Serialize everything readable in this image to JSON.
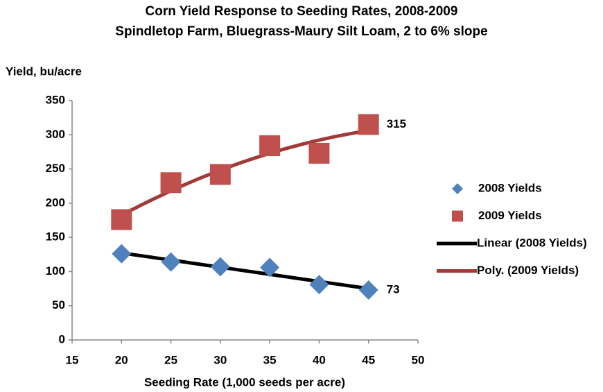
{
  "chart_data": {
    "type": "scatter",
    "title": "Corn Yield Response to Seeding Rates, 2008-2009",
    "subtitle": "Spindletop Farm, Bluegrass-Maury Silt Loam, 2 to 6% slope",
    "x_label": "Seeding Rate (1,000 seeds per acre)",
    "y_label": "Yield, bu/acre",
    "xlim": [
      15,
      50
    ],
    "xticks": [
      15,
      20,
      25,
      30,
      35,
      40,
      45,
      50
    ],
    "ylim": [
      0,
      350
    ],
    "yticks": [
      0,
      50,
      100,
      150,
      200,
      250,
      300,
      350
    ],
    "grid": false,
    "legend": "right",
    "x": [
      20,
      25,
      30,
      35,
      40,
      45
    ],
    "series": [
      {
        "name": "2008 Yields",
        "color": "#4f81bd",
        "marker": "diamond",
        "values": [
          126,
          114,
          107,
          106,
          81,
          73
        ],
        "label_last": true
      },
      {
        "name": "2009 Yields",
        "color": "#c0504d",
        "marker": "square",
        "values": [
          176,
          230,
          242,
          284,
          273,
          315
        ],
        "label_last": true
      }
    ],
    "trendlines": [
      {
        "name": "Linear (2008 Yields)",
        "color": "#000000",
        "of": 0,
        "order": 1
      },
      {
        "name": "Poly. (2009 Yields)",
        "color": "#a23b38",
        "of": 1,
        "order": 2
      }
    ]
  }
}
